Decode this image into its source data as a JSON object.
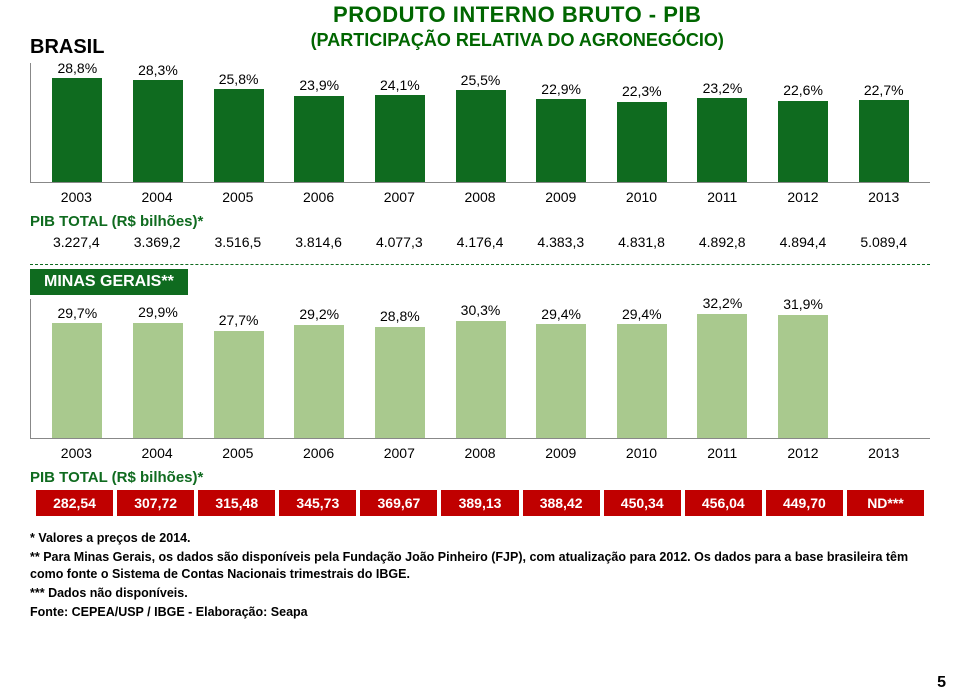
{
  "title_main": "PRODUTO INTERNO BRUTO - PIB",
  "title_sub": "(PARTICIPAÇÃO RELATIVA DO AGRONEGÓCIO)",
  "brasil_label": "BRASIL",
  "mg_label": "MINAS GERAIS**",
  "pib_label_brasil": "PIB TOTAL (R$ bilhões)*",
  "pib_label_mg": "PIB TOTAL (R$ bilhões)*",
  "years": [
    "2003",
    "2004",
    "2005",
    "2006",
    "2007",
    "2008",
    "2009",
    "2010",
    "2011",
    "2012",
    "2013"
  ],
  "brasil_chart": {
    "type": "bar",
    "bar_color": "#0f6b1f",
    "label_fontsize": 14,
    "ylim_max": 33,
    "values": [
      28.8,
      28.3,
      25.8,
      23.9,
      24.1,
      25.5,
      22.9,
      22.3,
      23.2,
      22.6,
      22.7
    ],
    "labels": [
      "28,8%",
      "28,3%",
      "25,8%",
      "23,9%",
      "24,1%",
      "25,5%",
      "22,9%",
      "22,3%",
      "23,2%",
      "22,6%",
      "22,7%"
    ]
  },
  "pib_brasil_values": [
    "3.227,4",
    "3.369,2",
    "3.516,5",
    "3.814,6",
    "4.077,3",
    "4.176,4",
    "4.383,3",
    "4.831,8",
    "4.892,8",
    "4.894,4",
    "5.089,4"
  ],
  "mg_chart": {
    "type": "bar",
    "bar_color": "#a9c98e",
    "label_fontsize": 14,
    "ylim_max": 36,
    "values": [
      29.7,
      29.9,
      27.7,
      29.2,
      28.8,
      30.3,
      29.4,
      29.4,
      32.2,
      31.9,
      null
    ],
    "labels": [
      "29,7%",
      "29,9%",
      "27,7%",
      "29,2%",
      "28,8%",
      "30,3%",
      "29,4%",
      "29,4%",
      "32,2%",
      "31,9%",
      ""
    ]
  },
  "pib_mg_values": [
    "282,54",
    "307,72",
    "315,48",
    "345,73",
    "369,67",
    "389,13",
    "388,42",
    "450,34",
    "456,04",
    "449,70",
    "ND***"
  ],
  "red_row_bg": "#c00000",
  "footnotes": {
    "f1": "* Valores a preços de 2014.",
    "f2": "** Para Minas Gerais, os dados  são disponíveis pela Fundação João Pinheiro (FJP), com atualização para 2012.  Os dados para a base brasileira têm como fonte o Sistema de Contas Nacionais trimestrais do IBGE.",
    "f3": "*** Dados não disponíveis.",
    "f4": "Fonte: CEPEA/USP / IBGE - Elaboração: Seapa"
  },
  "page_number": "5",
  "background_color": "#ffffff",
  "axis_color": "#888888",
  "title_color": "#006600",
  "divider_color": "#0f6b1f"
}
